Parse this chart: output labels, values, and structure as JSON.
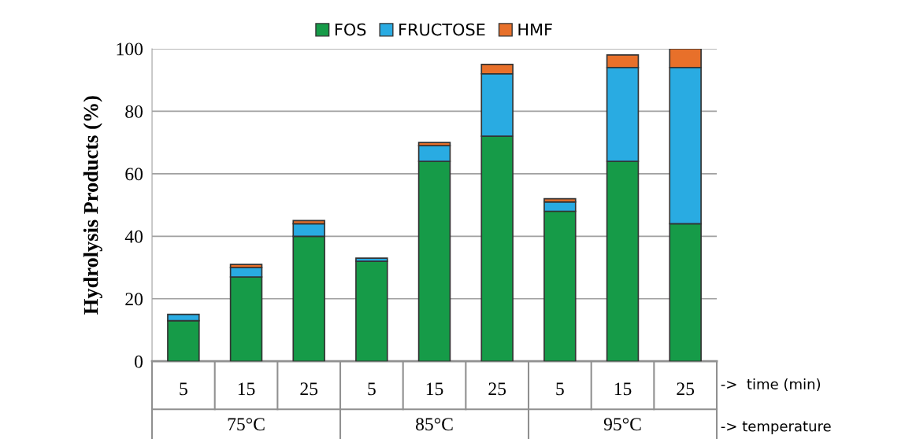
{
  "chart_data": {
    "type": "bar",
    "stacked": true,
    "ylabel": "Hydrolysis Products (%)",
    "categories": [
      "5",
      "15",
      "25",
      "5",
      "15",
      "25",
      "5",
      "15",
      "25"
    ],
    "series": [
      {
        "name": "FOS",
        "color": "#169b48",
        "values": [
          13,
          27,
          40,
          32,
          64,
          72,
          48,
          64,
          44
        ]
      },
      {
        "name": "FRUCTOSE",
        "color": "#29abe2",
        "values": [
          2,
          3,
          4,
          1,
          5,
          20,
          3,
          30,
          50
        ]
      },
      {
        "name": "HMF",
        "color": "#e8702a",
        "values": [
          null,
          1,
          1,
          null,
          1,
          3,
          1,
          4,
          6
        ]
      }
    ],
    "ylim": [
      0,
      100
    ],
    "yticks": [
      0,
      20,
      40,
      60,
      80,
      100
    ],
    "grid": "y",
    "legend": "top",
    "annotations": [
      "75°C",
      "85°C",
      "95°C",
      "->  time (min)",
      "-> temperature"
    ]
  }
}
